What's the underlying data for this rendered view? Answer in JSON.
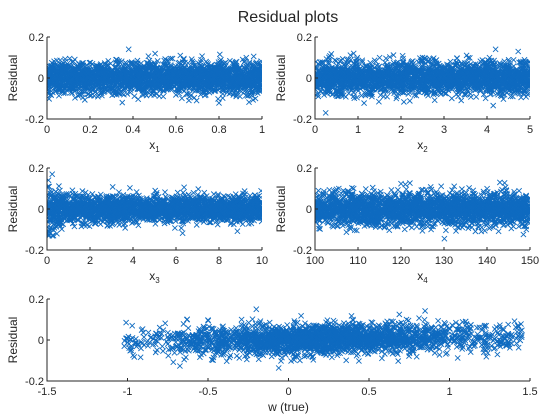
{
  "figure": {
    "title": "Residual plots"
  },
  "chart_data": [
    {
      "type": "scatter",
      "xlabel": "x",
      "xsub": "1",
      "ylabel": "Residual",
      "xlim": [
        0,
        1
      ],
      "ylim": [
        -0.2,
        0.2
      ],
      "xticks": [
        0,
        0.2,
        0.4,
        0.6,
        0.8,
        1
      ],
      "xticklabels": [
        "0",
        "0.2",
        "0.4",
        "0.6",
        "0.8",
        "1"
      ],
      "yticks": [
        -0.2,
        0,
        0.2
      ],
      "yticklabels": [
        "-0.2",
        "0",
        "0.2"
      ],
      "grid": false,
      "marker": "x",
      "color": "#0f6bc0",
      "n_points": 2500,
      "residual_sd": 0.038,
      "residual_sd_low_x": 0.038,
      "x_density": "uniform",
      "x": [
        0.02,
        0.11,
        0.23,
        0.38,
        0.47,
        0.59,
        0.66,
        0.74,
        0.82,
        0.91,
        0.97,
        0.35,
        0.62,
        0.88
      ],
      "y": [
        0.03,
        -0.05,
        0.06,
        0.14,
        -0.07,
        0.02,
        -0.11,
        0.08,
        -0.03,
        0.09,
        -0.1,
        -0.12,
        0.11,
        -0.09
      ]
    },
    {
      "type": "scatter",
      "xlabel": "x",
      "xsub": "2",
      "ylabel": "Residual",
      "xlim": [
        0,
        5
      ],
      "ylim": [
        -0.2,
        0.2
      ],
      "xticks": [
        0,
        1,
        2,
        3,
        4,
        5
      ],
      "xticklabels": [
        "0",
        "1",
        "2",
        "3",
        "4",
        "5"
      ],
      "yticks": [
        -0.2,
        0,
        0.2
      ],
      "yticklabels": [
        "-0.2",
        "0",
        "0.2"
      ],
      "grid": false,
      "marker": "x",
      "color": "#0f6bc0",
      "n_points": 2500,
      "residual_sd": 0.04,
      "residual_sd_low_x": 0.04,
      "x_density": "uniform",
      "x": [
        0.1,
        0.6,
        1.2,
        1.9,
        2.5,
        3.1,
        3.8,
        4.2,
        4.6,
        4.9,
        0.9,
        3.4
      ],
      "y": [
        0.02,
        -0.08,
        0.06,
        -0.04,
        0.1,
        -0.06,
        0.04,
        0.14,
        -0.09,
        0.07,
        0.12,
        -0.11
      ]
    },
    {
      "type": "scatter",
      "xlabel": "x",
      "xsub": "3",
      "ylabel": "Residual",
      "xlim": [
        0,
        10
      ],
      "ylim": [
        -0.2,
        0.2
      ],
      "xticks": [
        0,
        2,
        4,
        6,
        8,
        10
      ],
      "xticklabels": [
        "0",
        "2",
        "4",
        "6",
        "8",
        "10"
      ],
      "yticks": [
        -0.2,
        0,
        0.2
      ],
      "yticklabels": [
        "-0.2",
        "0",
        "0.2"
      ],
      "grid": false,
      "marker": "x",
      "color": "#0f6bc0",
      "n_points": 2500,
      "residual_sd": 0.032,
      "residual_sd_low_x": 0.06,
      "x_density": "uniform",
      "x": [
        0.1,
        0.3,
        0.6,
        1.2,
        2.4,
        3.9,
        5.1,
        6.3,
        7.7,
        8.8,
        9.6
      ],
      "y": [
        0.11,
        -0.13,
        0.09,
        -0.07,
        0.06,
        -0.05,
        0.07,
        -0.06,
        0.05,
        -0.04,
        0.03
      ]
    },
    {
      "type": "scatter",
      "xlabel": "x",
      "xsub": "4",
      "ylabel": "Residual",
      "xlim": [
        100,
        150
      ],
      "ylim": [
        -0.2,
        0.2
      ],
      "xticks": [
        100,
        110,
        120,
        130,
        140,
        150
      ],
      "xticklabels": [
        "100",
        "110",
        "120",
        "130",
        "140",
        "150"
      ],
      "yticks": [
        -0.2,
        0,
        0.2
      ],
      "yticklabels": [
        "-0.2",
        "0",
        "0.2"
      ],
      "grid": false,
      "marker": "x",
      "color": "#0f6bc0",
      "n_points": 2500,
      "residual_sd": 0.04,
      "residual_sd_low_x": 0.04,
      "x_density": "uniform",
      "x": [
        101,
        104,
        109,
        114,
        121,
        127,
        133,
        138,
        143,
        147,
        149
      ],
      "y": [
        0.05,
        -0.08,
        0.1,
        -0.06,
        0.12,
        -0.1,
        0.07,
        -0.05,
        0.13,
        -0.04,
        0.06
      ]
    },
    {
      "type": "scatter",
      "xlabel": "w (true)",
      "ylabel": "Residual",
      "xlim": [
        -1.5,
        1.5
      ],
      "ylim": [
        -0.2,
        0.2
      ],
      "xticks": [
        -1.5,
        -1,
        -0.5,
        0,
        0.5,
        1,
        1.5
      ],
      "xticklabels": [
        "-1.5",
        "-1",
        "-0.5",
        "0",
        "0.5",
        "1",
        "1.5"
      ],
      "yticks": [
        -0.2,
        0,
        0.2
      ],
      "yticklabels": [
        "-0.2",
        "0",
        "0.2"
      ],
      "grid": false,
      "marker": "x",
      "color": "#0f6bc0",
      "n_points": 2500,
      "residual_sd": 0.036,
      "residual_sd_low_x": 0.036,
      "x_density": "triangular",
      "x_range": [
        -1.02,
        1.45
      ],
      "y_trend": [
        [
          -1.0,
          -0.01
        ],
        [
          1.4,
          0.02
        ]
      ],
      "x": [
        -1.02,
        -0.98,
        -0.8,
        -0.52,
        -0.2,
        0.1,
        0.4,
        0.75,
        1.1,
        1.35,
        1.42
      ],
      "y": [
        -0.03,
        0.0,
        0.02,
        0.05,
        0.15,
        -0.08,
        0.1,
        -0.06,
        0.09,
        0.02,
        0.04
      ]
    }
  ]
}
